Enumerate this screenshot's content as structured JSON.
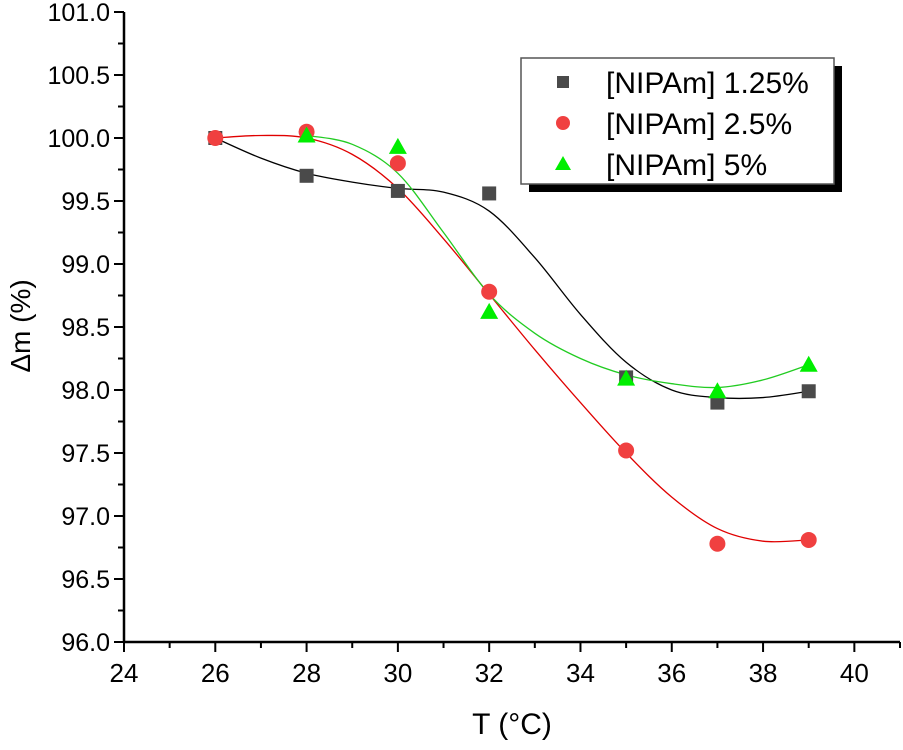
{
  "chart_data": {
    "type": "scatter",
    "xlabel": "T (°C)",
    "ylabel": "Δm (%)",
    "xlim": [
      24,
      41
    ],
    "ylim": [
      96.0,
      101.0
    ],
    "xticks": [
      "24",
      "26",
      "28",
      "30",
      "32",
      "34",
      "36",
      "38",
      "40"
    ],
    "yticks": [
      "96.0",
      "96.5",
      "97.0",
      "97.5",
      "98.0",
      "98.5",
      "99.0",
      "99.5",
      "100.0",
      "100.5",
      "101.0"
    ],
    "grid": false,
    "legend_position": "top-right",
    "series": [
      {
        "name": "[NIPAm] 1.25%",
        "marker": "square",
        "color": "#4a4a4a",
        "line_color": "#000000",
        "x": [
          26,
          28,
          30,
          32,
          35,
          37,
          39
        ],
        "y": [
          100.0,
          99.7,
          99.58,
          99.56,
          98.1,
          97.9,
          97.99
        ],
        "fit": {
          "x": [
            26,
            27,
            28,
            29,
            30,
            31,
            32,
            33,
            34,
            35,
            36,
            37,
            38,
            39
          ],
          "y": [
            100.0,
            99.84,
            99.72,
            99.65,
            99.6,
            99.57,
            99.42,
            99.05,
            98.6,
            98.22,
            98.0,
            97.94,
            97.94,
            97.99
          ]
        }
      },
      {
        "name": "[NIPAm] 2.5%",
        "marker": "circle",
        "color": "#f04040",
        "line_color": "#e00000",
        "x": [
          26,
          28,
          30,
          32,
          35,
          37,
          39
        ],
        "y": [
          100.0,
          100.05,
          99.8,
          98.78,
          97.52,
          96.78,
          96.81
        ],
        "fit": {
          "x": [
            26,
            27,
            28,
            29,
            30,
            31,
            32,
            33,
            34,
            35,
            36,
            37,
            38,
            39
          ],
          "y": [
            100.0,
            100.02,
            100.0,
            99.87,
            99.6,
            99.2,
            98.76,
            98.32,
            97.9,
            97.5,
            97.15,
            96.9,
            96.8,
            96.81
          ]
        }
      },
      {
        "name": "[NIPAm] 5%",
        "marker": "triangle",
        "color": "#00ee00",
        "line_color": "#22cc22",
        "x": [
          28,
          30,
          32,
          35,
          37,
          39
        ],
        "y": [
          100.02,
          99.93,
          98.62,
          98.09,
          97.99,
          98.2
        ],
        "fit": {
          "x": [
            28,
            29,
            30,
            31,
            32,
            33,
            34,
            35,
            36,
            37,
            38,
            39
          ],
          "y": [
            100.02,
            99.95,
            99.72,
            99.25,
            98.76,
            98.45,
            98.25,
            98.12,
            98.05,
            98.02,
            98.08,
            98.2
          ]
        }
      }
    ]
  }
}
